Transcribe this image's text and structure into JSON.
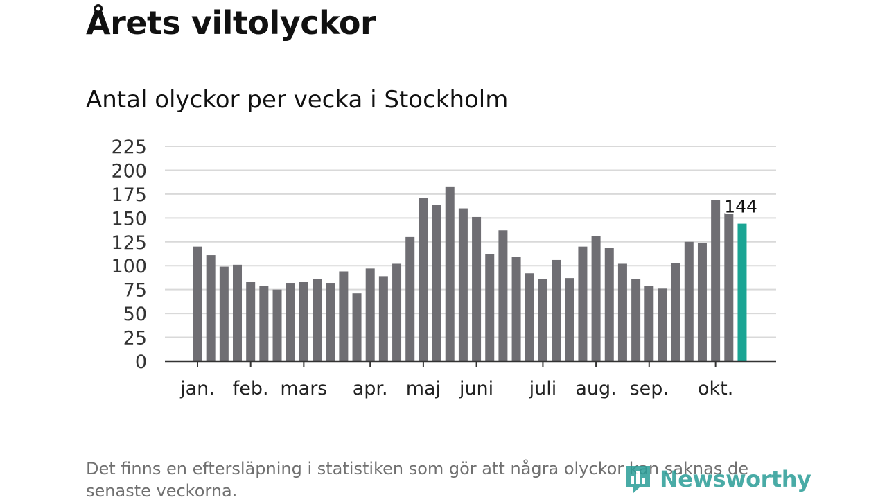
{
  "header": {
    "title": "Årets viltolyckor",
    "subtitle": "Antal olyckor per vecka i Stockholm"
  },
  "footer": {
    "note": "Det finns en eftersläpning i statistiken som gör att några olyckor kan saknas de senaste veckorna.",
    "brand": "Newsworthy"
  },
  "colors": {
    "bar": "#6f6e73",
    "highlight": "#1aa594",
    "grid": "#d9d9d9",
    "axis": "#333333",
    "brand": "#2a9d97"
  },
  "chart_data": {
    "type": "bar",
    "title": "Antal olyckor per vecka i Stockholm",
    "ylim": [
      0,
      225
    ],
    "yticks": [
      0,
      25,
      50,
      75,
      100,
      125,
      150,
      175,
      200,
      225
    ],
    "grid": true,
    "values": [
      120,
      111,
      99,
      101,
      83,
      79,
      75,
      82,
      83,
      86,
      82,
      94,
      71,
      97,
      89,
      102,
      130,
      171,
      164,
      183,
      160,
      151,
      112,
      137,
      109,
      92,
      86,
      106,
      87,
      120,
      131,
      119,
      102,
      86,
      79,
      76,
      103,
      125,
      124,
      169,
      155,
      144
    ],
    "month_labels": [
      {
        "label": "jan.",
        "week": 1
      },
      {
        "label": "feb.",
        "week": 5
      },
      {
        "label": "mars",
        "week": 9
      },
      {
        "label": "apr.",
        "week": 14
      },
      {
        "label": "maj",
        "week": 18
      },
      {
        "label": "juni",
        "week": 22
      },
      {
        "label": "juli",
        "week": 27
      },
      {
        "label": "aug.",
        "week": 31
      },
      {
        "label": "sep.",
        "week": 35
      },
      {
        "label": "okt.",
        "week": 40
      }
    ],
    "highlight_last": true,
    "last_value_label": "144"
  }
}
